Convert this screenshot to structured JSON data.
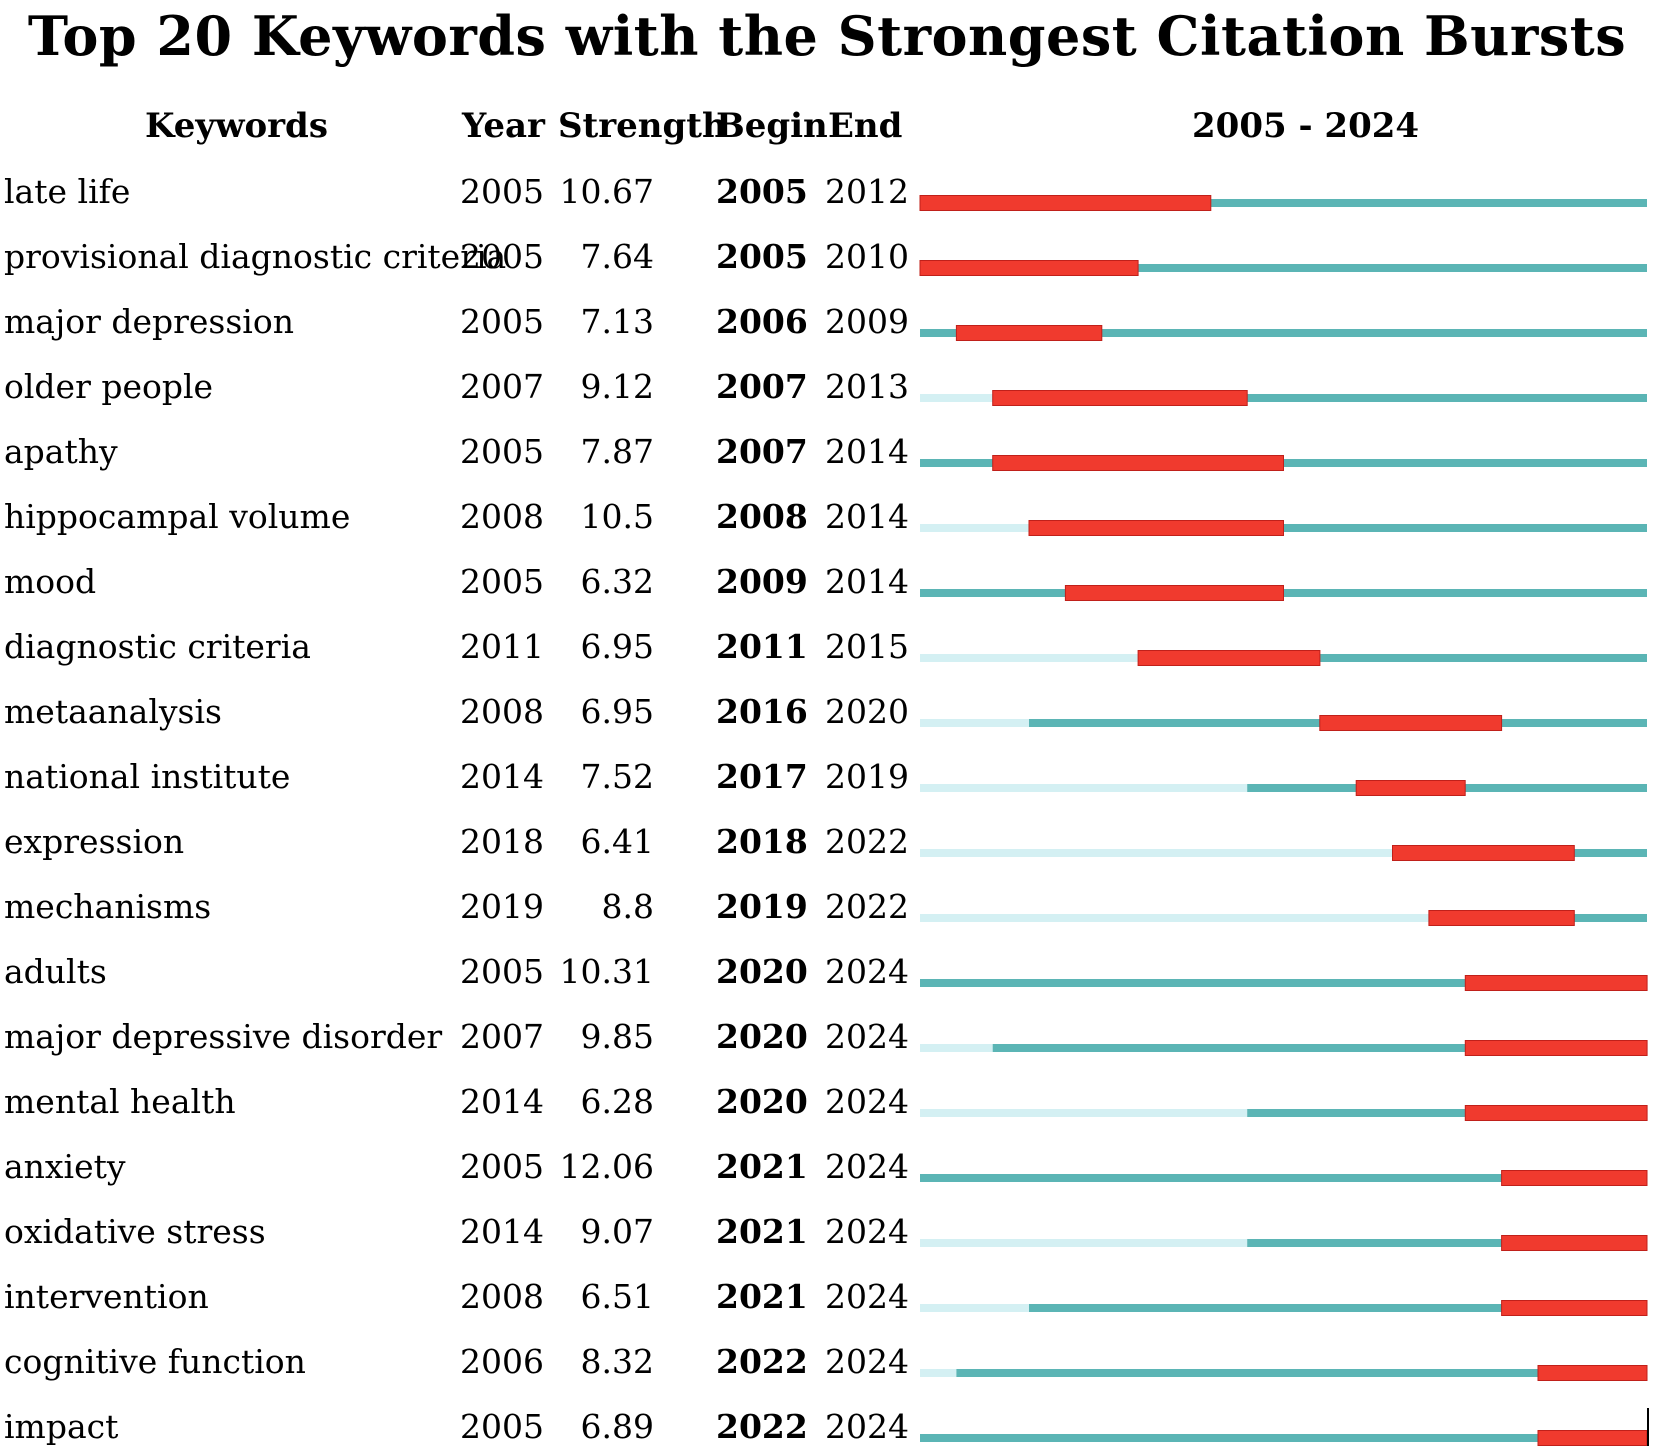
{
  "title": "Top 20 Keywords with the Strongest Citation Bursts",
  "headers": {
    "keywords": "Keywords",
    "year": "Year",
    "strength": "Strength",
    "begin": "Begin",
    "end": "End",
    "range": "2005 - 2024"
  },
  "colors": {
    "burst": "#f03a2e",
    "active": "#5bb5b5",
    "inactive": "#d4f0f3"
  },
  "chart_data": {
    "type": "table",
    "timeline_start": 2005,
    "timeline_end": 2024,
    "rows": [
      {
        "keyword": "late life",
        "year": 2005,
        "strength": "10.67",
        "begin": 2005,
        "end": 2012
      },
      {
        "keyword": "provisional diagnostic criteria",
        "year": 2005,
        "strength": "7.64",
        "begin": 2005,
        "end": 2010
      },
      {
        "keyword": "major depression",
        "year": 2005,
        "strength": "7.13",
        "begin": 2006,
        "end": 2009
      },
      {
        "keyword": "older people",
        "year": 2007,
        "strength": "9.12",
        "begin": 2007,
        "end": 2013
      },
      {
        "keyword": "apathy",
        "year": 2005,
        "strength": "7.87",
        "begin": 2007,
        "end": 2014
      },
      {
        "keyword": "hippocampal volume",
        "year": 2008,
        "strength": "10.5",
        "begin": 2008,
        "end": 2014
      },
      {
        "keyword": "mood",
        "year": 2005,
        "strength": "6.32",
        "begin": 2009,
        "end": 2014
      },
      {
        "keyword": "diagnostic criteria",
        "year": 2011,
        "strength": "6.95",
        "begin": 2011,
        "end": 2015
      },
      {
        "keyword": "metaanalysis",
        "year": 2008,
        "strength": "6.95",
        "begin": 2016,
        "end": 2020
      },
      {
        "keyword": "national institute",
        "year": 2014,
        "strength": "7.52",
        "begin": 2017,
        "end": 2019
      },
      {
        "keyword": "expression",
        "year": 2018,
        "strength": "6.41",
        "begin": 2018,
        "end": 2022
      },
      {
        "keyword": "mechanisms",
        "year": 2019,
        "strength": "8.8",
        "begin": 2019,
        "end": 2022
      },
      {
        "keyword": "adults",
        "year": 2005,
        "strength": "10.31",
        "begin": 2020,
        "end": 2024
      },
      {
        "keyword": "major depressive disorder",
        "year": 2007,
        "strength": "9.85",
        "begin": 2020,
        "end": 2024
      },
      {
        "keyword": "mental health",
        "year": 2014,
        "strength": "6.28",
        "begin": 2020,
        "end": 2024
      },
      {
        "keyword": "anxiety",
        "year": 2005,
        "strength": "12.06",
        "begin": 2021,
        "end": 2024
      },
      {
        "keyword": "oxidative stress",
        "year": 2014,
        "strength": "9.07",
        "begin": 2021,
        "end": 2024
      },
      {
        "keyword": "intervention",
        "year": 2008,
        "strength": "6.51",
        "begin": 2021,
        "end": 2024
      },
      {
        "keyword": "cognitive function",
        "year": 2006,
        "strength": "8.32",
        "begin": 2022,
        "end": 2024
      },
      {
        "keyword": "impact",
        "year": 2005,
        "strength": "6.89",
        "begin": 2022,
        "end": 2024
      }
    ]
  }
}
